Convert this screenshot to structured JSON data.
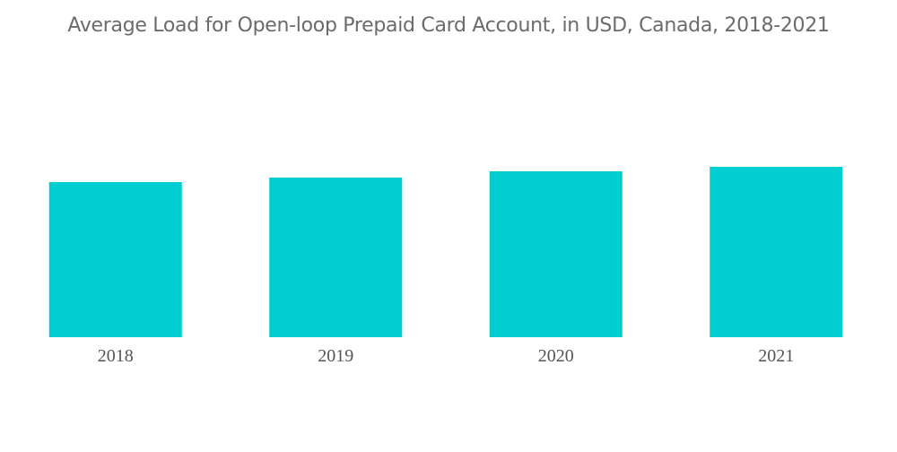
{
  "chart_data": {
    "type": "bar",
    "title": "Average Load for Open-loop Prepaid Card Account, in USD, Canada, 2018-2021",
    "categories": [
      "2018",
      "2019",
      "2020",
      "2021"
    ],
    "values": [
      173,
      178,
      185,
      190
    ],
    "xlabel": "",
    "ylabel": "",
    "ylim": [
      0,
      200
    ],
    "grid": false,
    "y_axis_shown": false,
    "bar_color": "#00ced1"
  }
}
